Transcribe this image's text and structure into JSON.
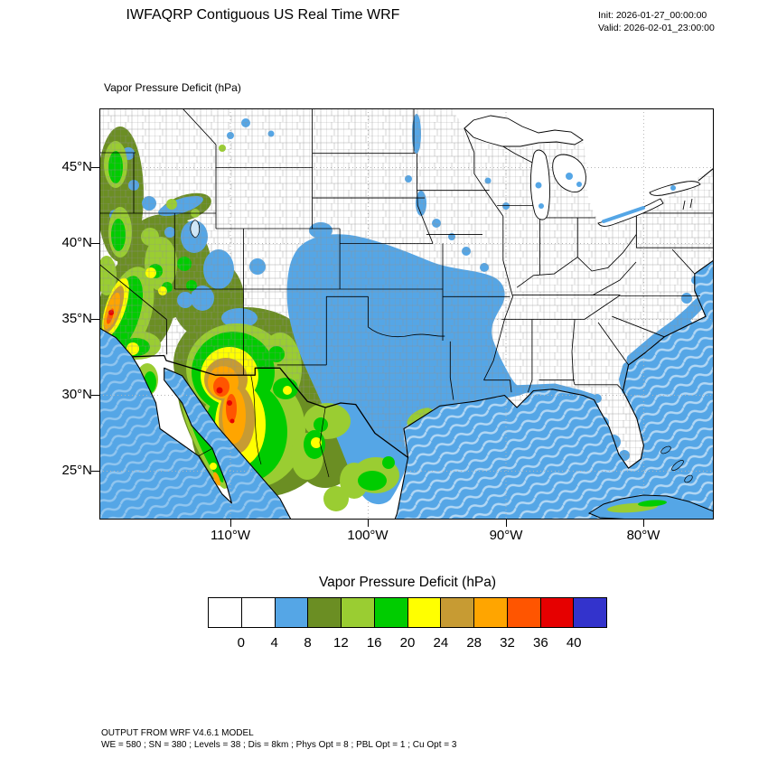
{
  "header": {
    "title": "IWFAQRP Contiguous US Real Time WRF",
    "init": "Init: 2026-01-27_00:00:00",
    "valid": "Valid: 2026-02-01_23:00:00"
  },
  "map": {
    "field_label": "Vapor Pressure Deficit   (hPa)",
    "lat_ticks": [
      "45°N",
      "40°N",
      "35°N",
      "30°N",
      "25°N"
    ],
    "lon_ticks": [
      "110°W",
      "100°W",
      "90°W",
      "80°W"
    ]
  },
  "colorbar": {
    "title": "Vapor Pressure Deficit  (hPa)",
    "tick_labels": [
      "0",
      "4",
      "8",
      "12",
      "16",
      "20",
      "24",
      "28",
      "32",
      "36",
      "40"
    ],
    "colors": [
      "#FFFFFF",
      "#FFFFFF",
      "#55A6E6",
      "#6B8E23",
      "#9ACD32",
      "#00CC00",
      "#FFFF00",
      "#C79B33",
      "#FFA500",
      "#FF5500",
      "#E60000",
      "#3333CC"
    ]
  },
  "footer": {
    "line1": "OUTPUT FROM WRF V4.6.1 MODEL",
    "line2": "WE = 580 ; SN = 380 ; Levels = 38 ; Dis = 8km ; Phys Opt = 8 ; PBL Opt = 1 ; Cu Opt = 3"
  },
  "chart_data": {
    "type": "heatmap",
    "title": "Vapor Pressure Deficit  (hPa)",
    "variable": "Vapor Pressure Deficit",
    "units": "hPa",
    "levels": [
      0,
      4,
      8,
      12,
      16,
      20,
      24,
      28,
      32,
      36,
      40
    ],
    "palette": [
      "#FFFFFF",
      "#FFFFFF",
      "#55A6E6",
      "#6B8E23",
      "#9ACD32",
      "#00CC00",
      "#FFFF00",
      "#C79B33",
      "#FFA500",
      "#FF5500",
      "#E60000",
      "#3333CC"
    ],
    "x_ticks": [
      "110°W",
      "100°W",
      "90°W",
      "80°W"
    ],
    "y_ticks": [
      "45°N",
      "40°N",
      "35°N",
      "30°N",
      "25°N"
    ],
    "summary": "Highest VPD (28-40 hPa, orange/red) over southern Arizona, Sonora and California Central Valley; 8-24 hPa (olive/green/yellow) over the Southwest, Nevada, New Mexico, Baja and northwest Mexico; 4-8 hPa (blue) over the central/southern Plains, Texas, Gulf coast states, Florida and adjacent oceans; below 4 hPa (white) over the northern and eastern US."
  }
}
